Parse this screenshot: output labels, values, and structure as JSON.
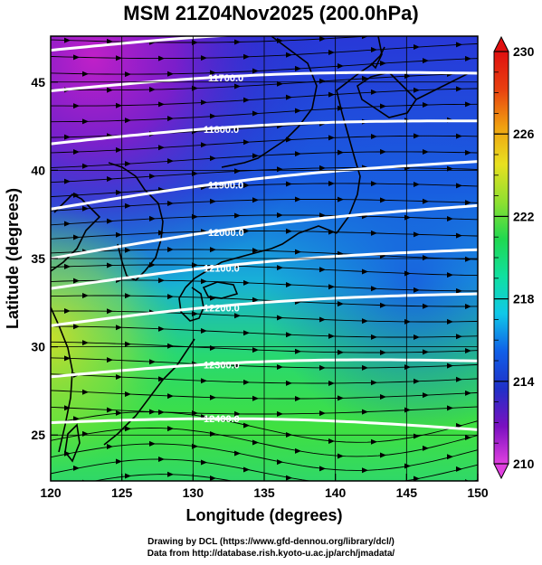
{
  "title": "MSM 21Z04Nov2025 (200.0hPa)",
  "x_axis": {
    "label": "Longitude (degrees)",
    "range": [
      120,
      150
    ],
    "ticks": [
      120,
      125,
      130,
      135,
      140,
      145,
      150
    ],
    "tick_labels": [
      "120",
      "125",
      "130",
      "135",
      "140",
      "145",
      "150"
    ]
  },
  "y_axis": {
    "label": "Latitude  (degrees)",
    "range": [
      22.4,
      47.6
    ],
    "ticks": [
      25,
      30,
      35,
      40,
      45
    ],
    "tick_labels": [
      "25",
      "30",
      "35",
      "40",
      "45"
    ]
  },
  "colorbar": {
    "range": [
      210,
      230
    ],
    "ticks": [
      210,
      214,
      218,
      222,
      226,
      230
    ],
    "tick_labels": [
      "210",
      "214",
      "218",
      "222",
      "226",
      "230"
    ],
    "colors": [
      "#e040e0",
      "#7a10c0",
      "#2030c8",
      "#1060e8",
      "#10c8e8",
      "#10e0a0",
      "#20d850",
      "#90e030",
      "#e8e020",
      "#f0a010",
      "#e84010",
      "#e01010"
    ]
  },
  "contours": [
    {
      "label": "11600.0",
      "lat_start": 46.8,
      "lat_end": 47.9
    },
    {
      "label": "11700.0",
      "lat_start": 44.5,
      "lat_end": 45.5
    },
    {
      "label": "11800.0",
      "lat_start": 41.5,
      "lat_end": 42.8
    },
    {
      "label": "11900.0",
      "lat_start": 37.8,
      "lat_end": 40.5
    },
    {
      "label": "12000.0",
      "lat_start": 35.0,
      "lat_end": 38.0
    },
    {
      "label": "12100.0",
      "lat_start": 33.3,
      "lat_end": 35.5
    },
    {
      "label": "12200.0",
      "lat_start": 31.2,
      "lat_end": 33.0
    },
    {
      "label": "12300.0",
      "lat_start": 28.3,
      "lat_end": 29.2
    },
    {
      "label": "12400.0",
      "lat_start": 25.7,
      "lat_end": 25.3
    }
  ],
  "credits": [
    "Drawing by DCL (https://www.gfd-dennou.org/library/dcl/)",
    "Data from http://database.rish.kyoto-u.ac.jp/arch/jmadata/"
  ]
}
